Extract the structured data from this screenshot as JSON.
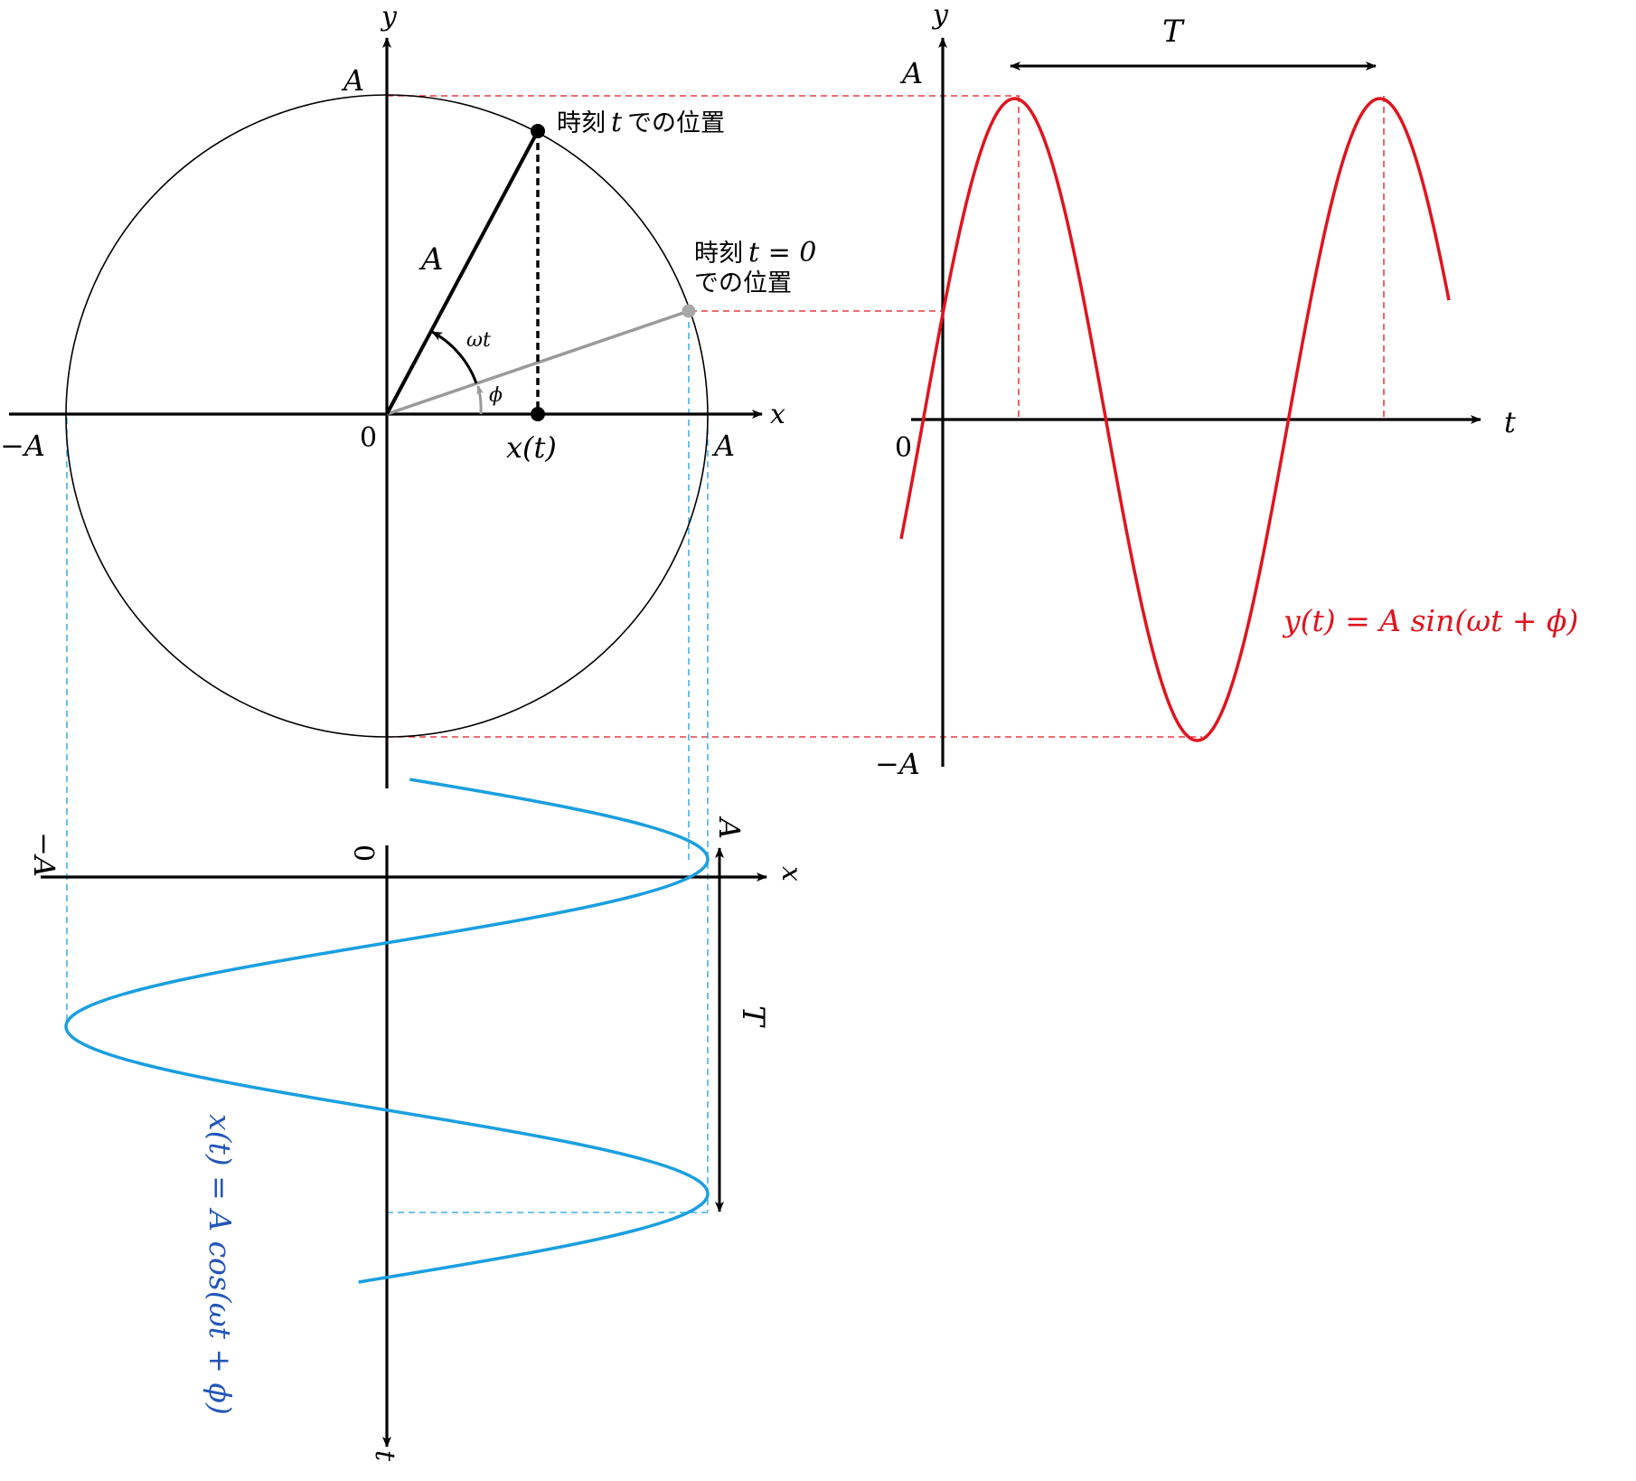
{
  "circle_panel": {
    "y_axis": "y",
    "x_axis": "x",
    "top_amp": "A",
    "left_amp": "−A",
    "right_amp": "A",
    "origin": "0",
    "radius_label": "A",
    "angle_label": "ωt",
    "phase_label": "ϕ",
    "xt_label": "x(t)",
    "pos_t": {
      "jp1": "時刻",
      "var": "t",
      "jp2": "での位置"
    },
    "pos_t0": {
      "jp1": "時刻",
      "var": "t = 0",
      "line2": "での位置"
    }
  },
  "sine_panel": {
    "y_axis": "y",
    "t_axis": "t",
    "top_amp": "A",
    "bottom_amp": "−A",
    "origin": "0",
    "period": "T",
    "formula": "y(t) = A sin(ωt + ϕ)",
    "curve_color": "#e0141e"
  },
  "cos_panel": {
    "x_axis": "x",
    "t_axis": "t",
    "left_amp": "−A",
    "right_amp": "A",
    "origin": "0",
    "period": "T",
    "formula": "x(t) = A cos(ωt + ϕ)",
    "curve_color": "#1a9fe0",
    "formula_color": "#2356b8"
  },
  "guide_colors": {
    "red": "#e0141e",
    "blue": "#1a9fe0",
    "gray": "#9a9a9a"
  }
}
